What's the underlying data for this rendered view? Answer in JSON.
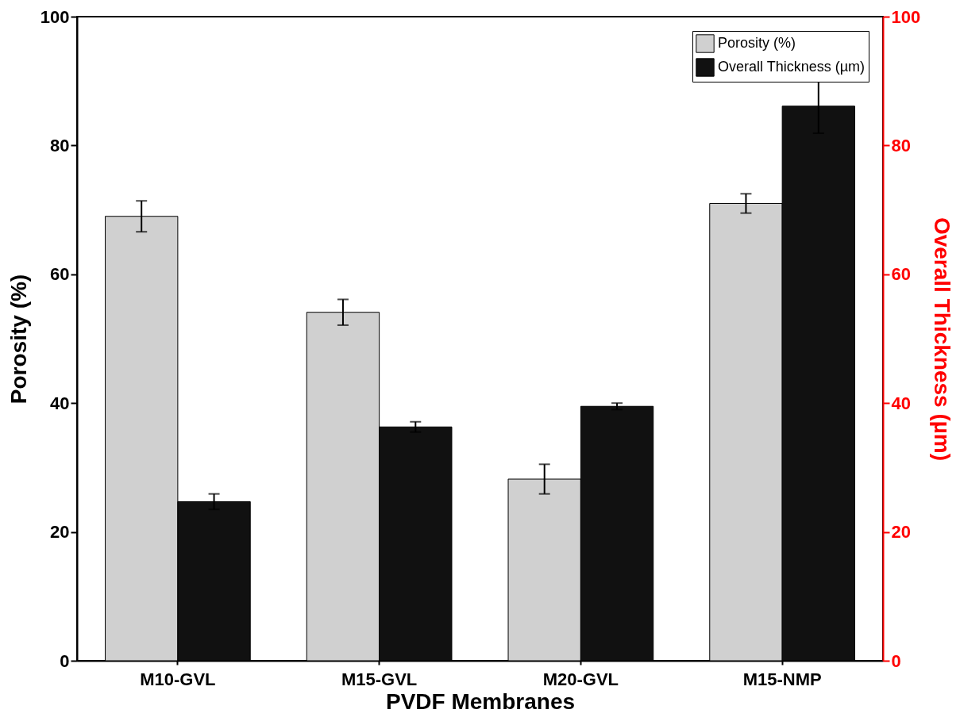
{
  "chart_data": {
    "type": "bar",
    "xlabel": "PVDF Membranes",
    "ylabel": "Porosity (%)",
    "y2label": "Overall Thickness (µm)",
    "categories": [
      "M10-GVL",
      "M15-GVL",
      "M20-GVL",
      "M15-NMP"
    ],
    "series": [
      {
        "name": "Porosity (%)",
        "color": "#d0d0d0",
        "values": [
          69,
          54.1,
          28.2,
          71
        ],
        "errors": [
          2.4,
          2,
          2.3,
          1.5
        ]
      },
      {
        "name": "Overall Thickness (µm)",
        "color": "#111111",
        "values": [
          24.7,
          36.3,
          39.5,
          86.1
        ],
        "errors": [
          1.2,
          0.8,
          0.5,
          4.2
        ],
        "axis": "y2"
      }
    ],
    "ylim": [
      0,
      100
    ],
    "yticks": [
      0,
      20,
      40,
      60,
      80,
      100
    ],
    "y2lim": [
      0,
      100
    ],
    "y2ticks": [
      0,
      20,
      40,
      60,
      80,
      100
    ],
    "grid": false,
    "legend": "top right"
  }
}
